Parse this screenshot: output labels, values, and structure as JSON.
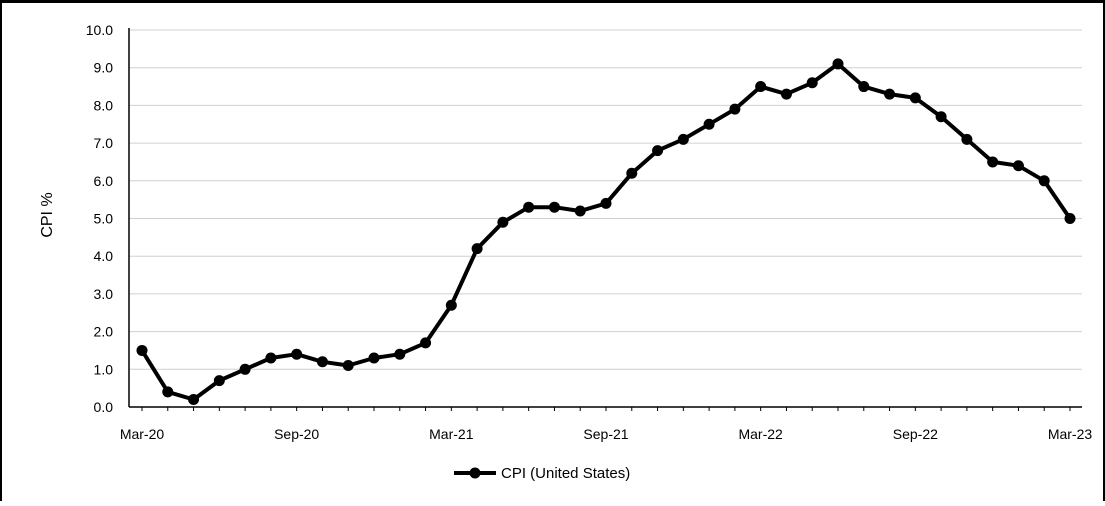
{
  "chart_data": {
    "type": "line",
    "ylabel": "CPI %",
    "xlabel": "",
    "ylim": [
      0,
      10
    ],
    "ytick_step": 1,
    "ytick_labels": [
      "0.0",
      "1.0",
      "2.0",
      "3.0",
      "4.0",
      "5.0",
      "6.0",
      "7.0",
      "8.0",
      "9.0",
      "10.0"
    ],
    "x_tick_labels": [
      "Mar-20",
      "Sep-20",
      "Mar-21",
      "Sep-21",
      "Mar-22",
      "Sep-22",
      "Mar-23"
    ],
    "grid": true,
    "legend_position": "bottom-center",
    "series": [
      {
        "name": "CPI (United States)",
        "color": "#000000",
        "x": [
          "Mar-20",
          "Apr-20",
          "May-20",
          "Jun-20",
          "Jul-20",
          "Aug-20",
          "Sep-20",
          "Oct-20",
          "Nov-20",
          "Dec-20",
          "Jan-21",
          "Feb-21",
          "Mar-21",
          "Apr-21",
          "May-21",
          "Jun-21",
          "Jul-21",
          "Aug-21",
          "Sep-21",
          "Oct-21",
          "Nov-21",
          "Dec-21",
          "Jan-22",
          "Feb-22",
          "Mar-22",
          "Apr-22",
          "May-22",
          "Jun-22",
          "Jul-22",
          "Aug-22",
          "Sep-22",
          "Oct-22",
          "Nov-22",
          "Dec-22",
          "Jan-23",
          "Feb-23",
          "Mar-23"
        ],
        "values": [
          1.5,
          0.4,
          0.2,
          0.7,
          1.0,
          1.3,
          1.4,
          1.2,
          1.1,
          1.3,
          1.4,
          1.7,
          2.7,
          4.2,
          4.9,
          5.3,
          5.3,
          5.2,
          5.4,
          6.2,
          6.8,
          7.1,
          7.5,
          7.9,
          8.5,
          8.3,
          8.6,
          9.1,
          8.5,
          8.3,
          8.2,
          7.7,
          7.1,
          6.5,
          6.4,
          6.0,
          5.0
        ]
      }
    ]
  }
}
